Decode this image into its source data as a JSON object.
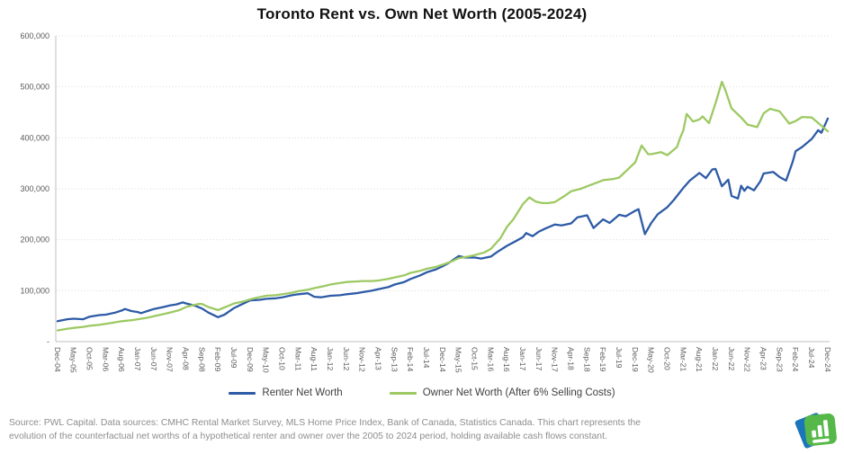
{
  "title": "Toronto Rent vs. Own Net Worth (2005-2024)",
  "source": {
    "line1": "Source: PWL Capital. Data sources: CMHC Rental Market Survey, MLS Home Price Index, Bank of Canada, Statistics Canada. This chart represents the",
    "line2": "evolution of the counterfactual net worths of a hypothetical renter and owner over the 2005 to 2024 period, holding available cash flows constant."
  },
  "logo": {
    "name": "pwl-capital-logo",
    "green": "#56b848",
    "blue": "#1b75bb"
  },
  "colors": {
    "renter_line": "#2d5ba6",
    "owner_line": "#9dc963",
    "gridline": "#d9d9d9",
    "axis_line": "#bfbfbf",
    "tick_text": "#595959",
    "legend_text": "#404040",
    "source_text": "#8e8e8e"
  },
  "chart_data": {
    "type": "line",
    "title": "Toronto Rent vs. Own Net Worth (2005-2024)",
    "xlabel": "",
    "ylabel": "",
    "x_unit": "months since Dec-2004 (0 = Dec-04, 240 = Dec-24)",
    "x_range": [
      0,
      240
    ],
    "ylim": [
      0,
      600000
    ],
    "grid": "horizontal-dotted",
    "legend_position": "bottom",
    "y_ticks": [
      {
        "label": "600,000",
        "value": 600000
      },
      {
        "label": "500,000",
        "value": 500000
      },
      {
        "label": "400,000",
        "value": 400000
      },
      {
        "label": "300,000",
        "value": 300000
      },
      {
        "label": "200,000",
        "value": 200000
      },
      {
        "label": "100,000",
        "value": 100000
      },
      {
        "label": "-",
        "value": 0
      }
    ],
    "x_tick_step_months": 5,
    "x_tick_labels": [
      "Dec-04",
      "May-05",
      "Oct-05",
      "Mar-06",
      "Aug-06",
      "Jan-07",
      "Jun-07",
      "Nov-07",
      "Apr-08",
      "Sep-08",
      "Feb-09",
      "Jul-09",
      "Dec-09",
      "May-10",
      "Oct-10",
      "Mar-11",
      "Aug-11",
      "Jan-12",
      "Jun-12",
      "Nov-12",
      "Apr-13",
      "Sep-13",
      "Feb-14",
      "Jul-14",
      "Dec-14",
      "May-15",
      "Oct-15",
      "Mar-16",
      "Aug-16",
      "Jan-17",
      "Jun-17",
      "Nov-17",
      "Apr-18",
      "Sep-18",
      "Feb-19",
      "Jul-19",
      "Dec-19",
      "May-20",
      "Oct-20",
      "Mar-21",
      "Aug-21",
      "Jan-22",
      "Jun-22",
      "Nov-22",
      "Apr-23",
      "Sep-23",
      "Feb-24",
      "Jul-24",
      "Dec-24"
    ],
    "series": [
      {
        "name": "Renter Net Worth",
        "color": "#2d5ba6",
        "points": [
          [
            0,
            40000
          ],
          [
            3,
            44000
          ],
          [
            5,
            45000
          ],
          [
            8,
            44000
          ],
          [
            10,
            49000
          ],
          [
            13,
            52000
          ],
          [
            15,
            53000
          ],
          [
            18,
            57000
          ],
          [
            20,
            61000
          ],
          [
            21,
            64000
          ],
          [
            23,
            60000
          ],
          [
            25,
            58000
          ],
          [
            26,
            56000
          ],
          [
            28,
            60000
          ],
          [
            30,
            64000
          ],
          [
            33,
            68000
          ],
          [
            35,
            71000
          ],
          [
            37,
            73000
          ],
          [
            39,
            77000
          ],
          [
            40,
            75000
          ],
          [
            43,
            70000
          ],
          [
            45,
            65000
          ],
          [
            47,
            57000
          ],
          [
            50,
            48000
          ],
          [
            52,
            53000
          ],
          [
            55,
            66000
          ],
          [
            57,
            72000
          ],
          [
            60,
            81000
          ],
          [
            63,
            82000
          ],
          [
            65,
            84000
          ],
          [
            68,
            85000
          ],
          [
            70,
            87000
          ],
          [
            73,
            91000
          ],
          [
            75,
            93000
          ],
          [
            78,
            95000
          ],
          [
            80,
            88000
          ],
          [
            82,
            87000
          ],
          [
            85,
            90000
          ],
          [
            88,
            91000
          ],
          [
            90,
            93000
          ],
          [
            93,
            95000
          ],
          [
            95,
            97000
          ],
          [
            98,
            100000
          ],
          [
            100,
            103000
          ],
          [
            103,
            107000
          ],
          [
            105,
            112000
          ],
          [
            108,
            117000
          ],
          [
            110,
            123000
          ],
          [
            113,
            130000
          ],
          [
            115,
            136000
          ],
          [
            118,
            142000
          ],
          [
            120,
            148000
          ],
          [
            122,
            155000
          ],
          [
            125,
            168000
          ],
          [
            127,
            165000
          ],
          [
            130,
            165000
          ],
          [
            132,
            163000
          ],
          [
            135,
            167000
          ],
          [
            137,
            176000
          ],
          [
            140,
            188000
          ],
          [
            143,
            198000
          ],
          [
            145,
            205000
          ],
          [
            146,
            213000
          ],
          [
            148,
            207000
          ],
          [
            150,
            216000
          ],
          [
            152,
            222000
          ],
          [
            155,
            230000
          ],
          [
            157,
            228000
          ],
          [
            160,
            232000
          ],
          [
            162,
            244000
          ],
          [
            165,
            248000
          ],
          [
            167,
            223000
          ],
          [
            170,
            240000
          ],
          [
            172,
            233000
          ],
          [
            175,
            249000
          ],
          [
            177,
            246000
          ],
          [
            180,
            257000
          ],
          [
            181,
            260000
          ],
          [
            183,
            211000
          ],
          [
            185,
            233000
          ],
          [
            187,
            250000
          ],
          [
            190,
            264000
          ],
          [
            192,
            278000
          ],
          [
            195,
            302000
          ],
          [
            197,
            316000
          ],
          [
            200,
            331000
          ],
          [
            202,
            321000
          ],
          [
            204,
            338000
          ],
          [
            205,
            339000
          ],
          [
            207,
            305000
          ],
          [
            209,
            318000
          ],
          [
            210,
            286000
          ],
          [
            212,
            281000
          ],
          [
            213,
            306000
          ],
          [
            214,
            296000
          ],
          [
            215,
            304000
          ],
          [
            217,
            297000
          ],
          [
            219,
            315000
          ],
          [
            220,
            330000
          ],
          [
            223,
            333000
          ],
          [
            225,
            323000
          ],
          [
            227,
            316000
          ],
          [
            229,
            352000
          ],
          [
            230,
            374000
          ],
          [
            232,
            382000
          ],
          [
            235,
            398000
          ],
          [
            237,
            415000
          ],
          [
            238,
            410000
          ],
          [
            240,
            438000
          ]
        ]
      },
      {
        "name": "Owner Net Worth (After 6% Selling Costs)",
        "color": "#9dc963",
        "points": [
          [
            0,
            22000
          ],
          [
            3,
            25000
          ],
          [
            5,
            27000
          ],
          [
            8,
            29000
          ],
          [
            10,
            31000
          ],
          [
            13,
            33000
          ],
          [
            15,
            35000
          ],
          [
            18,
            38000
          ],
          [
            20,
            40000
          ],
          [
            23,
            42000
          ],
          [
            25,
            44000
          ],
          [
            28,
            47000
          ],
          [
            30,
            50000
          ],
          [
            33,
            54000
          ],
          [
            35,
            57000
          ],
          [
            38,
            62000
          ],
          [
            40,
            68000
          ],
          [
            42,
            71000
          ],
          [
            44,
            74000
          ],
          [
            45,
            74000
          ],
          [
            47,
            68000
          ],
          [
            50,
            62000
          ],
          [
            52,
            67000
          ],
          [
            55,
            75000
          ],
          [
            58,
            79000
          ],
          [
            60,
            83000
          ],
          [
            62,
            86000
          ],
          [
            65,
            90000
          ],
          [
            68,
            91000
          ],
          [
            70,
            93000
          ],
          [
            73,
            96000
          ],
          [
            75,
            99000
          ],
          [
            78,
            102000
          ],
          [
            80,
            105000
          ],
          [
            83,
            109000
          ],
          [
            85,
            112000
          ],
          [
            88,
            115000
          ],
          [
            90,
            117000
          ],
          [
            93,
            118000
          ],
          [
            95,
            119000
          ],
          [
            98,
            119000
          ],
          [
            100,
            120000
          ],
          [
            103,
            123000
          ],
          [
            105,
            126000
          ],
          [
            108,
            130000
          ],
          [
            110,
            135000
          ],
          [
            113,
            139000
          ],
          [
            115,
            143000
          ],
          [
            118,
            147000
          ],
          [
            120,
            151000
          ],
          [
            123,
            158000
          ],
          [
            125,
            164000
          ],
          [
            128,
            167000
          ],
          [
            130,
            170000
          ],
          [
            133,
            175000
          ],
          [
            135,
            182000
          ],
          [
            138,
            203000
          ],
          [
            140,
            225000
          ],
          [
            142,
            240000
          ],
          [
            145,
            270000
          ],
          [
            147,
            283000
          ],
          [
            149,
            275000
          ],
          [
            151,
            272000
          ],
          [
            153,
            272000
          ],
          [
            155,
            274000
          ],
          [
            158,
            286000
          ],
          [
            160,
            295000
          ],
          [
            163,
            300000
          ],
          [
            165,
            305000
          ],
          [
            168,
            312000
          ],
          [
            170,
            317000
          ],
          [
            173,
            319000
          ],
          [
            175,
            322000
          ],
          [
            178,
            340000
          ],
          [
            180,
            352000
          ],
          [
            182,
            385000
          ],
          [
            184,
            368000
          ],
          [
            185,
            368000
          ],
          [
            188,
            372000
          ],
          [
            190,
            366000
          ],
          [
            193,
            382000
          ],
          [
            194,
            400000
          ],
          [
            195,
            415000
          ],
          [
            196,
            447000
          ],
          [
            198,
            432000
          ],
          [
            200,
            436000
          ],
          [
            201,
            442000
          ],
          [
            203,
            429000
          ],
          [
            205,
            468000
          ],
          [
            207,
            510000
          ],
          [
            208,
            495000
          ],
          [
            210,
            458000
          ],
          [
            213,
            440000
          ],
          [
            215,
            426000
          ],
          [
            218,
            421000
          ],
          [
            220,
            448000
          ],
          [
            222,
            457000
          ],
          [
            225,
            452000
          ],
          [
            228,
            428000
          ],
          [
            230,
            433000
          ],
          [
            232,
            441000
          ],
          [
            235,
            440000
          ],
          [
            238,
            424000
          ],
          [
            240,
            413000
          ]
        ]
      }
    ]
  }
}
